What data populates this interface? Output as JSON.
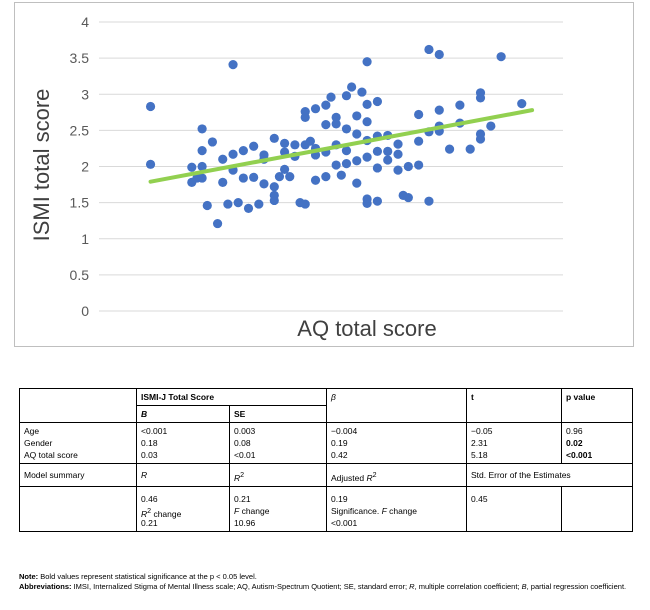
{
  "chart_data": {
    "type": "scatter",
    "xlabel": "AQ total score",
    "ylabel": "ISMI total score",
    "ylim": [
      0,
      4
    ],
    "yticks": [
      "0",
      "0.5",
      "1",
      "1.5",
      "2",
      "2.5",
      "3",
      "3.5",
      "4"
    ],
    "xlim": [
      0,
      45
    ],
    "grid": "horizontal",
    "marker_color": "#4472c4",
    "trendline_color": "#92d050",
    "trendline": {
      "x": [
        5,
        42
      ],
      "y": [
        1.79,
        2.78
      ]
    },
    "points": [
      [
        5,
        2.83
      ],
      [
        5,
        2.03
      ],
      [
        9,
        1.78
      ],
      [
        9,
        1.99
      ],
      [
        9.5,
        1.84
      ],
      [
        10,
        2.52
      ],
      [
        10,
        2.22
      ],
      [
        10,
        2.0
      ],
      [
        10,
        1.84
      ],
      [
        10.5,
        1.46
      ],
      [
        11,
        2.34
      ],
      [
        11.5,
        1.21
      ],
      [
        12,
        2.1
      ],
      [
        12,
        1.78
      ],
      [
        12.5,
        1.48
      ],
      [
        13,
        3.41
      ],
      [
        13,
        2.17
      ],
      [
        13,
        1.95
      ],
      [
        13.5,
        1.5
      ],
      [
        14,
        2.22
      ],
      [
        14,
        1.84
      ],
      [
        14.5,
        1.42
      ],
      [
        15,
        2.28
      ],
      [
        15,
        1.85
      ],
      [
        15.5,
        1.48
      ],
      [
        16,
        2.1
      ],
      [
        16,
        2.16
      ],
      [
        16,
        1.76
      ],
      [
        17,
        2.39
      ],
      [
        17,
        1.72
      ],
      [
        17,
        1.6
      ],
      [
        17,
        1.53
      ],
      [
        17.5,
        1.86
      ],
      [
        18,
        2.32
      ],
      [
        18,
        2.2
      ],
      [
        18,
        1.96
      ],
      [
        18.5,
        1.86
      ],
      [
        19,
        2.3
      ],
      [
        19,
        2.14
      ],
      [
        19.5,
        1.5
      ],
      [
        20,
        2.76
      ],
      [
        20,
        2.68
      ],
      [
        20,
        2.3
      ],
      [
        20,
        1.48
      ],
      [
        20.5,
        2.35
      ],
      [
        21,
        2.8
      ],
      [
        21,
        2.25
      ],
      [
        21,
        2.16
      ],
      [
        21,
        1.81
      ],
      [
        22,
        2.85
      ],
      [
        22,
        2.58
      ],
      [
        22,
        2.2
      ],
      [
        22,
        1.86
      ],
      [
        22.5,
        2.96
      ],
      [
        23,
        2.68
      ],
      [
        23,
        2.59
      ],
      [
        23,
        2.3
      ],
      [
        23,
        2.02
      ],
      [
        23.5,
        1.88
      ],
      [
        24,
        2.98
      ],
      [
        24,
        2.52
      ],
      [
        24,
        2.22
      ],
      [
        24,
        2.04
      ],
      [
        24.5,
        3.1
      ],
      [
        25,
        2.7
      ],
      [
        25,
        2.45
      ],
      [
        25,
        2.08
      ],
      [
        25,
        1.77
      ],
      [
        25.5,
        3.03
      ],
      [
        26,
        3.45
      ],
      [
        26,
        2.86
      ],
      [
        26,
        2.62
      ],
      [
        26,
        2.36
      ],
      [
        26,
        2.13
      ],
      [
        26,
        1.55
      ],
      [
        26,
        1.49
      ],
      [
        27,
        2.9
      ],
      [
        27,
        2.42
      ],
      [
        27,
        2.21
      ],
      [
        27,
        1.98
      ],
      [
        27,
        1.52
      ],
      [
        28,
        2.43
      ],
      [
        28,
        2.21
      ],
      [
        28,
        2.09
      ],
      [
        29,
        2.31
      ],
      [
        29,
        2.17
      ],
      [
        29,
        1.95
      ],
      [
        29.5,
        1.6
      ],
      [
        30,
        2.0
      ],
      [
        30,
        1.57
      ],
      [
        31,
        2.72
      ],
      [
        31,
        2.35
      ],
      [
        31,
        2.02
      ],
      [
        32,
        3.62
      ],
      [
        32,
        2.48
      ],
      [
        32,
        1.52
      ],
      [
        33,
        3.55
      ],
      [
        33,
        2.78
      ],
      [
        33,
        2.56
      ],
      [
        33,
        2.49
      ],
      [
        34,
        2.24
      ],
      [
        35,
        2.85
      ],
      [
        35,
        2.6
      ],
      [
        36,
        2.24
      ],
      [
        37,
        3.02
      ],
      [
        37,
        2.95
      ],
      [
        37,
        2.45
      ],
      [
        37,
        2.38
      ],
      [
        38,
        2.56
      ],
      [
        39,
        3.52
      ],
      [
        41,
        2.87
      ]
    ]
  },
  "table": {
    "header": {
      "group_label": "ISMI-J Total Score",
      "beta": "β",
      "t": "t",
      "p": "p value",
      "b": "B",
      "se": "SE"
    },
    "rows": [
      {
        "label": "Age",
        "b": "<0.001",
        "se": "0.003",
        "beta": "−0.004",
        "t": "−0.05",
        "p": "0.96"
      },
      {
        "label": "Gender",
        "b": "0.18",
        "se": "0.08",
        "beta": "0.19",
        "t": "2.31",
        "p": "0.02"
      },
      {
        "label": "AQ total score",
        "b": "0.03",
        "se": "<0.01",
        "beta": "0.42",
        "t": "5.18",
        "p": "<0.001"
      }
    ],
    "summary_header": {
      "label": "Model summary",
      "r": "R",
      "r2": "R",
      "r2_sup": "2",
      "adj_r2_prefix": "Adjusted ",
      "adj_r2": "R",
      "adj_r2_sup": "2",
      "std_err": "Std. Error of the Estimates"
    },
    "summary_values": {
      "r": "0.46",
      "r2_change_label": "R",
      "r2_change_sup": "2",
      "r2_change_suffix": " change",
      "r2_change": "0.21",
      "r2": "0.21",
      "f_change_label": "F",
      "f_change_suffix": " change",
      "f_change": "10.96",
      "adj_r2": "0.19",
      "sig_f_prefix": "Significance. ",
      "sig_f_label": "F",
      "sig_f_suffix": " change",
      "sig_f": "<0.001",
      "std_err": "0.45"
    }
  },
  "notes": {
    "note_label": "Note:",
    "note_text": " Bold values represent statistical significance at the p < 0.05 level.",
    "abbr_label": "Abbreviations:",
    "abbr_text_1": " IMSI, Internalized Stigma of Mental Illness scale; AQ, Autism-Spectrum Quotient; SE, standard error; ",
    "abbr_r": "R",
    "abbr_text_2": ", multiple correlation coefficient; ",
    "abbr_b": "B",
    "abbr_text_3": ", partial regression coefficient."
  }
}
